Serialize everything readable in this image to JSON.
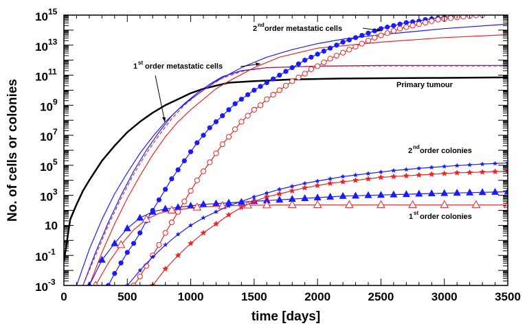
{
  "chart_data": {
    "type": "line",
    "xlabel": "time [days]",
    "ylabel": "No. of cells or colonies",
    "xlim": [
      0,
      3500
    ],
    "ylim_log10": [
      -3,
      15
    ],
    "y_scale": "log",
    "grid": false,
    "x_ticks": [
      "0",
      "500",
      "1000",
      "1500",
      "2000",
      "2500",
      "3000",
      "3500"
    ],
    "y_ticks": [
      {
        "base": "10",
        "exp": "15"
      },
      {
        "base": "10",
        "exp": "13"
      },
      {
        "base": "10",
        "exp": "11"
      },
      {
        "base": "10",
        "exp": "9"
      },
      {
        "base": "10",
        "exp": "7"
      },
      {
        "base": "10",
        "exp": "5"
      },
      {
        "base": "10",
        "exp": "3"
      },
      {
        "base": "10",
        "exp": ""
      },
      {
        "base": "10",
        "exp": "-1"
      },
      {
        "base": "10",
        "exp": "-3"
      }
    ],
    "annotations": {
      "primary": "Primary tumour",
      "first_cells": {
        "num": "1",
        "sup": "st",
        "text": "order metastatic cells"
      },
      "second_cells": {
        "num": "2",
        "sup": "nd",
        "text": "order metastatic cells"
      },
      "second_colonies": {
        "num": "2",
        "sup": "nd",
        "text": "order colonies"
      },
      "first_colonies": {
        "num": "1",
        "sup": "st",
        "text": "order colonies"
      }
    },
    "colors": {
      "primary": "#000000",
      "blue": "#1a1aff",
      "red": "#ee2222"
    },
    "series": [
      {
        "color": "#000000",
        "width": 2.5,
        "marker": "none",
        "x": [
          0,
          50,
          100,
          150,
          200,
          300,
          400,
          500,
          600,
          700,
          800,
          900,
          1000,
          1100,
          1200,
          1300,
          1500,
          1800,
          2200,
          2600,
          3000,
          3500
        ],
        "y": [
          -1.4,
          1.4,
          2.4,
          3.3,
          4.0,
          5.3,
          6.3,
          7.2,
          7.9,
          8.5,
          9.0,
          9.4,
          9.8,
          10.1,
          10.3,
          10.5,
          10.6,
          10.72,
          10.78,
          10.8,
          10.82,
          10.85
        ]
      },
      {
        "color": "#1a1aff",
        "width": 1.2,
        "marker": "none",
        "x": [
          100,
          200,
          300,
          400,
          500,
          600,
          700,
          800,
          900,
          1000,
          1100,
          1200,
          1400,
          1600,
          1800,
          2000,
          2200,
          2500,
          3000,
          3500
        ],
        "y": [
          -3,
          -0.6,
          1.4,
          3.1,
          4.5,
          5.8,
          6.9,
          7.9,
          8.7,
          9.4,
          10.0,
          10.6,
          11.5,
          12.2,
          12.7,
          13.1,
          13.4,
          13.7,
          14.1,
          14.4
        ]
      },
      {
        "color": "#ee2222",
        "width": 1.2,
        "marker": "none",
        "x": [
          200,
          300,
          400,
          500,
          600,
          700,
          800,
          900,
          1000,
          1100,
          1200,
          1300,
          1500,
          1700,
          2000,
          2500,
          3000,
          3500
        ],
        "y": [
          -3,
          -0.8,
          1.1,
          2.8,
          4.3,
          5.7,
          6.9,
          7.9,
          8.7,
          9.4,
          10.1,
          10.6,
          11.5,
          12.2,
          12.8,
          13.2,
          13.5,
          13.7
        ]
      },
      {
        "color": "#1a1aff",
        "width": 1.2,
        "marker": "none",
        "x": [
          150,
          250,
          350,
          450,
          550,
          650,
          750,
          850,
          950,
          1050,
          1150,
          1250,
          1400,
          1600,
          2000,
          2500,
          3000,
          3500
        ],
        "y": [
          -3,
          -0.8,
          1.2,
          3.0,
          4.6,
          6.0,
          7.2,
          8.3,
          9.1,
          9.8,
          10.4,
          10.9,
          11.3,
          11.5,
          11.6,
          11.65,
          11.65,
          11.65
        ]
      },
      {
        "color": "#ee2222",
        "width": 1.2,
        "marker": "none",
        "dash": "5,3",
        "x": [
          150,
          250,
          350,
          450,
          550,
          650,
          750,
          850,
          950,
          1050,
          1150,
          1250,
          1400,
          1600,
          2000,
          2500,
          3000,
          3500
        ],
        "y": [
          -3,
          -1.0,
          1.0,
          2.8,
          4.4,
          5.8,
          7.0,
          8.1,
          9.0,
          9.7,
          10.3,
          10.8,
          11.25,
          11.5,
          11.6,
          11.62,
          11.62,
          11.62
        ]
      },
      {
        "color": "#1a1aff",
        "width": 1.2,
        "marker": "dot",
        "x": [
          350,
          400,
          450,
          500,
          550,
          600,
          650,
          700,
          750,
          800,
          850,
          900,
          950,
          1000,
          1050,
          1100,
          1150,
          1200,
          1250,
          1300,
          1350,
          1400,
          1450,
          1500,
          1550,
          1600,
          1650,
          1700,
          1750,
          1800,
          1850,
          1900,
          1950,
          2000,
          2050,
          2100,
          2150,
          2200,
          2250,
          2300,
          2350,
          2400,
          2450,
          2500,
          2550,
          2600,
          2650,
          2700,
          2750,
          2800,
          2850,
          2900,
          2950,
          3000,
          3050,
          3100,
          3150
        ],
        "y": [
          -3,
          -2.2,
          -1.5,
          -0.8,
          -0.2,
          0.5,
          1.3,
          2.0,
          2.7,
          3.4,
          4.1,
          4.7,
          5.3,
          5.9,
          6.5,
          7.0,
          7.5,
          7.9,
          8.3,
          8.7,
          9.1,
          9.4,
          9.7,
          10.0,
          10.25,
          10.5,
          10.75,
          11.0,
          11.25,
          11.5,
          11.75,
          12.0,
          12.2,
          12.4,
          12.6,
          12.8,
          13.0,
          13.2,
          13.35,
          13.5,
          13.65,
          13.8,
          13.95,
          14.1,
          14.2,
          14.3,
          14.4,
          14.5,
          14.55,
          14.6,
          14.7,
          14.75,
          14.8,
          14.85,
          14.9,
          14.95,
          15.0
        ]
      },
      {
        "color": "#ee2222",
        "width": 1.2,
        "marker": "circle",
        "x": [
          550,
          600,
          650,
          700,
          750,
          800,
          850,
          900,
          950,
          1000,
          1050,
          1100,
          1150,
          1200,
          1250,
          1300,
          1350,
          1400,
          1450,
          1500,
          1550,
          1600,
          1650,
          1700,
          1750,
          1800,
          1850,
          1900,
          1950,
          2000,
          2050,
          2100,
          2150,
          2200,
          2250,
          2300,
          2350,
          2400,
          2450,
          2500,
          2550,
          2600,
          2650,
          2700,
          2750,
          2800,
          2850,
          2900,
          2950,
          3000,
          3050,
          3100,
          3150,
          3200,
          3250,
          3300
        ],
        "y": [
          -3,
          -2.4,
          -1.7,
          -1.0,
          -0.3,
          0.5,
          1.2,
          1.9,
          2.6,
          3.3,
          4.0,
          4.6,
          5.2,
          5.8,
          6.4,
          6.9,
          7.4,
          7.9,
          8.3,
          8.7,
          9.0,
          9.4,
          9.7,
          10.0,
          10.3,
          10.6,
          10.85,
          11.1,
          11.4,
          11.6,
          11.85,
          12.1,
          12.3,
          12.5,
          12.7,
          12.9,
          13.1,
          13.3,
          13.5,
          13.65,
          13.8,
          13.95,
          14.1,
          14.2,
          14.3,
          14.4,
          14.5,
          14.6,
          14.7,
          14.75,
          14.8,
          14.85,
          14.9,
          14.95,
          14.98,
          15.0
        ]
      },
      {
        "color": "#1a1aff",
        "width": 1.2,
        "marker": "tri",
        "x": [
          200,
          300,
          400,
          500,
          600,
          700,
          800,
          900,
          1000,
          1100,
          1200,
          1300,
          1400,
          1500,
          1600,
          1700,
          1800,
          1900,
          2000,
          2100,
          2200,
          2300,
          2400,
          2500,
          2600,
          2700,
          2800,
          2900,
          3000,
          3100,
          3200,
          3300,
          3400,
          3500
        ],
        "y": [
          -3,
          -1.3,
          -0.2,
          0.8,
          1.5,
          1.9,
          2.1,
          2.2,
          2.3,
          2.4,
          2.45,
          2.5,
          2.55,
          2.6,
          2.65,
          2.7,
          2.75,
          2.8,
          2.85,
          2.9,
          2.95,
          2.97,
          3.0,
          3.02,
          3.05,
          3.07,
          3.1,
          3.12,
          3.14,
          3.16,
          3.18,
          3.2,
          3.22,
          3.24
        ]
      },
      {
        "color": "#ee2222",
        "width": 1.2,
        "marker": "tri-open",
        "x": [
          250,
          350,
          450,
          550,
          650,
          750,
          850,
          950,
          1050,
          1150,
          1250,
          1350,
          1450,
          1600,
          1800,
          2000,
          2250,
          2500,
          2750,
          3000,
          3250,
          3500
        ],
        "y": [
          -3,
          -1.5,
          -0.3,
          0.7,
          1.4,
          1.8,
          2.0,
          2.1,
          2.2,
          2.25,
          2.3,
          2.32,
          2.34,
          2.35,
          2.36,
          2.36,
          2.36,
          2.36,
          2.36,
          2.36,
          2.36,
          2.36
        ]
      },
      {
        "color": "#1a1aff",
        "width": 1.2,
        "marker": "star",
        "x": [
          500,
          600,
          700,
          800,
          900,
          1000,
          1100,
          1200,
          1300,
          1400,
          1500,
          1600,
          1700,
          1800,
          1900,
          2000,
          2100,
          2200,
          2300,
          2400,
          2500,
          2600,
          2700,
          2800,
          2900,
          3000,
          3100,
          3200,
          3300,
          3400,
          3500
        ],
        "y": [
          -3,
          -2.0,
          -1.1,
          -0.3,
          0.4,
          1.0,
          1.5,
          1.9,
          2.3,
          2.6,
          2.9,
          3.15,
          3.4,
          3.6,
          3.8,
          3.95,
          4.1,
          4.25,
          4.35,
          4.45,
          4.55,
          4.65,
          4.72,
          4.8,
          4.86,
          4.92,
          4.98,
          5.03,
          5.08,
          5.12,
          5.16
        ]
      },
      {
        "color": "#ee2222",
        "width": 1.2,
        "marker": "star-red",
        "x": [
          700,
          800,
          900,
          1000,
          1100,
          1200,
          1300,
          1400,
          1500,
          1600,
          1700,
          1800,
          1900,
          2000,
          2100,
          2200,
          2300,
          2400,
          2500,
          2600,
          2700,
          2800,
          2900,
          3000,
          3100,
          3200,
          3300,
          3400,
          3500
        ],
        "y": [
          -3,
          -1.9,
          -1.0,
          -0.2,
          0.5,
          1.1,
          1.7,
          2.2,
          2.6,
          2.9,
          3.1,
          3.3,
          3.5,
          3.65,
          3.8,
          3.9,
          4.0,
          4.1,
          4.2,
          4.25,
          4.3,
          4.35,
          4.4,
          4.45,
          4.5,
          4.52,
          4.55,
          4.58,
          4.6
        ]
      }
    ]
  }
}
